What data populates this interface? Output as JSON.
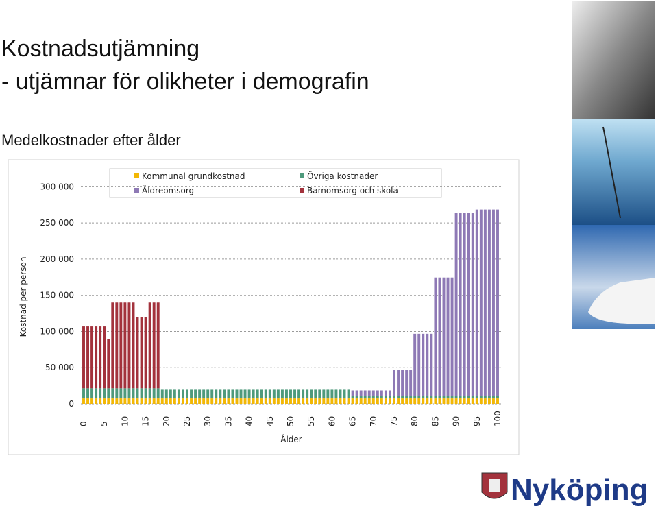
{
  "header": {
    "title": "Kostnadsutjämning",
    "subtitle": "- utjämnar för olikheter i demografin"
  },
  "logo": "Nyköping",
  "chart_data": {
    "type": "stacked-bar",
    "title": "Medelkostnader efter ålder",
    "x_label": "Ålder",
    "y_label": "Kostnad per person",
    "x": [
      0,
      1,
      2,
      3,
      4,
      5,
      6,
      7,
      8,
      9,
      10,
      11,
      12,
      13,
      14,
      15,
      16,
      17,
      18,
      19,
      20,
      21,
      22,
      23,
      24,
      25,
      26,
      27,
      28,
      29,
      30,
      31,
      32,
      33,
      34,
      35,
      36,
      37,
      38,
      39,
      40,
      41,
      42,
      43,
      44,
      45,
      46,
      47,
      48,
      49,
      50,
      51,
      52,
      53,
      54,
      55,
      56,
      57,
      58,
      59,
      60,
      61,
      62,
      63,
      64,
      65,
      66,
      67,
      68,
      69,
      70,
      71,
      72,
      73,
      74,
      75,
      76,
      77,
      78,
      79,
      80,
      81,
      82,
      83,
      84,
      85,
      86,
      87,
      88,
      89,
      90,
      91,
      92,
      93,
      94,
      95,
      96,
      97,
      98,
      99,
      100
    ],
    "xticks": [
      0,
      5,
      10,
      15,
      20,
      25,
      30,
      35,
      40,
      45,
      50,
      55,
      60,
      65,
      70,
      75,
      80,
      85,
      90,
      95,
      100
    ],
    "ylim": [
      0,
      325000
    ],
    "yticks": [
      0,
      {
        "value": 50000,
        "label": "50 000"
      },
      {
        "value": 100000,
        "label": "100 000"
      },
      {
        "value": 150000,
        "label": "150 000"
      },
      {
        "value": 200000,
        "label": "200 000"
      },
      {
        "value": 250000,
        "label": "250 000"
      },
      {
        "value": 300000,
        "label": "300 000"
      }
    ],
    "grid": true,
    "series": [
      {
        "name": "Kommunal grundkostnad",
        "color": "#f2b705",
        "values": [
          7500,
          7500,
          7500,
          7500,
          7500,
          7500,
          7500,
          7500,
          7500,
          7500,
          7500,
          7500,
          7500,
          7500,
          7500,
          7500,
          7500,
          7500,
          7500,
          7500,
          7500,
          7500,
          7500,
          7500,
          7500,
          7500,
          7500,
          7500,
          7500,
          7500,
          7500,
          7500,
          7500,
          7500,
          7500,
          7500,
          7500,
          7500,
          7500,
          7500,
          7500,
          7500,
          7500,
          7500,
          7500,
          7500,
          7500,
          7500,
          7500,
          7500,
          7500,
          7500,
          7500,
          7500,
          7500,
          7500,
          7500,
          7500,
          7500,
          7500,
          7500,
          7500,
          7500,
          7500,
          7500,
          7500,
          7500,
          7500,
          7500,
          7500,
          7500,
          7500,
          7500,
          7500,
          7500,
          7500,
          7500,
          7500,
          7500,
          7500,
          7500,
          7500,
          7500,
          7500,
          7500,
          7500,
          7500,
          7500,
          7500,
          7500,
          7500,
          7500,
          7500,
          7500,
          7500,
          7500,
          7500,
          7500,
          7500,
          7500,
          7500
        ]
      },
      {
        "name": "Övriga kostnader",
        "color": "#4e9a7c",
        "values": [
          14000,
          14000,
          14000,
          14000,
          14000,
          14000,
          14000,
          14000,
          14000,
          14000,
          14000,
          14000,
          14000,
          14000,
          14000,
          14000,
          14000,
          14000,
          14000,
          12000,
          12000,
          12000,
          12000,
          12000,
          12000,
          12000,
          12000,
          12000,
          12000,
          12000,
          12000,
          12000,
          12000,
          12000,
          12000,
          12000,
          12000,
          12000,
          12000,
          12000,
          12000,
          12000,
          12000,
          12000,
          12000,
          12000,
          12000,
          12000,
          12000,
          12000,
          12000,
          12000,
          12000,
          12000,
          12000,
          12000,
          12000,
          12000,
          12000,
          12000,
          12000,
          12000,
          12000,
          12000,
          12000,
          3000,
          3000,
          3000,
          3000,
          3000,
          3000,
          3000,
          3000,
          3000,
          3000,
          3000,
          3000,
          3000,
          3000,
          3000,
          3000,
          3000,
          3000,
          3000,
          3000,
          3000,
          3000,
          3000,
          3000,
          3000,
          3000,
          3000,
          3000,
          3000,
          3000,
          3000,
          3000,
          3000,
          3000,
          3000,
          3000
        ]
      },
      {
        "name": "Äldreomsorg",
        "color": "#8e79b5",
        "values": [
          0,
          0,
          0,
          0,
          0,
          0,
          0,
          0,
          0,
          0,
          0,
          0,
          0,
          0,
          0,
          0,
          0,
          0,
          0,
          0,
          0,
          0,
          0,
          0,
          0,
          0,
          0,
          0,
          0,
          0,
          0,
          0,
          0,
          0,
          0,
          0,
          0,
          0,
          0,
          0,
          0,
          0,
          0,
          0,
          0,
          0,
          0,
          0,
          0,
          0,
          0,
          0,
          0,
          0,
          0,
          0,
          0,
          0,
          0,
          0,
          0,
          0,
          0,
          0,
          0,
          8000,
          8000,
          8000,
          8000,
          8000,
          8000,
          8000,
          8000,
          8000,
          8000,
          36000,
          36000,
          36000,
          36000,
          36000,
          86300,
          86300,
          86300,
          86300,
          86300,
          164100,
          164100,
          164100,
          164100,
          164100,
          253300,
          253300,
          253300,
          253300,
          253300,
          258000,
          258000,
          258000,
          258000,
          258000,
          258000
        ]
      },
      {
        "name": "Barnomsorg och skola",
        "color": "#a3323c",
        "values": [
          85500,
          85500,
          85500,
          85500,
          85500,
          85500,
          68500,
          118500,
          118500,
          118500,
          118500,
          118500,
          118500,
          98500,
          98500,
          98500,
          118500,
          118500,
          118500,
          0,
          0,
          0,
          0,
          0,
          0,
          0,
          0,
          0,
          0,
          0,
          0,
          0,
          0,
          0,
          0,
          0,
          0,
          0,
          0,
          0,
          0,
          0,
          0,
          0,
          0,
          0,
          0,
          0,
          0,
          0,
          0,
          0,
          0,
          0,
          0,
          0,
          0,
          0,
          0,
          0,
          0,
          0,
          0,
          0,
          0,
          0,
          0,
          0,
          0,
          0,
          0,
          0,
          0,
          0,
          0,
          0,
          0,
          0,
          0,
          0,
          0,
          0,
          0,
          0,
          0,
          0,
          0,
          0,
          0,
          0,
          0,
          0,
          0,
          0,
          0,
          0,
          0,
          0,
          0,
          0,
          0
        ]
      }
    ]
  }
}
